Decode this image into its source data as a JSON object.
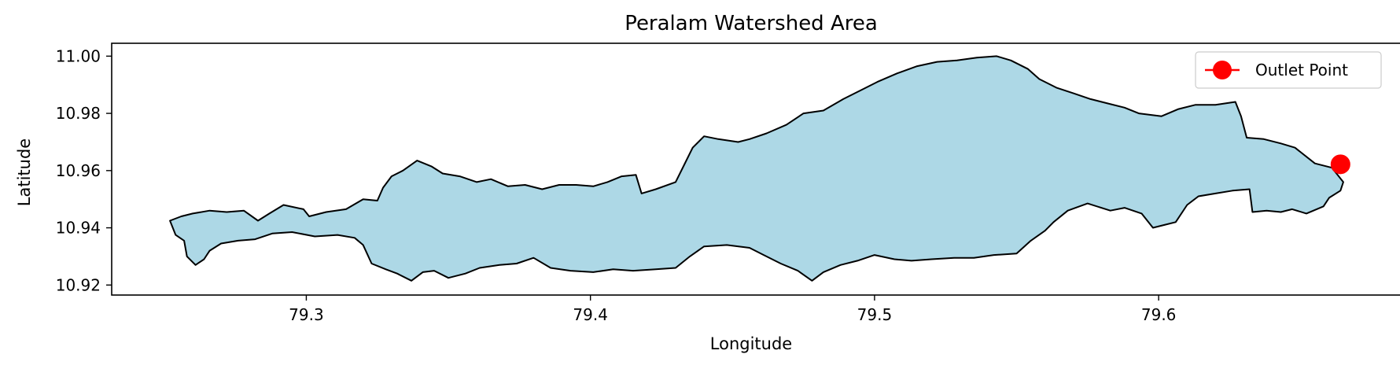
{
  "chart_data": {
    "type": "map",
    "title": "Peralam Watershed Area",
    "xlabel": "Longitude",
    "ylabel": "Latitude",
    "xlim": [
      79.2315,
      79.6855
    ],
    "ylim": [
      10.9165,
      11.0045
    ],
    "xticks": [
      79.3,
      79.4,
      79.5,
      79.6
    ],
    "xtick_labels": [
      "79.3",
      "79.4",
      "79.5",
      "79.6"
    ],
    "yticks": [
      10.92,
      10.94,
      10.96,
      10.98,
      11.0
    ],
    "ytick_labels": [
      "10.92",
      "10.94",
      "10.96",
      "10.98",
      "11.00"
    ],
    "grid": false,
    "legend": {
      "placement": "top-right",
      "entries": [
        {
          "label": "Outlet Point",
          "color": "#ff0000",
          "marker": "circle"
        }
      ]
    },
    "watershed": {
      "fill": "#add8e6",
      "edge": "#000000",
      "boundary": [
        [
          79.252,
          10.9425
        ],
        [
          79.256,
          10.944
        ],
        [
          79.26,
          10.945
        ],
        [
          79.266,
          10.946
        ],
        [
          79.272,
          10.9455
        ],
        [
          79.278,
          10.946
        ],
        [
          79.283,
          10.9425
        ],
        [
          79.287,
          10.945
        ],
        [
          79.292,
          10.948
        ],
        [
          79.299,
          10.9465
        ],
        [
          79.301,
          10.944
        ],
        [
          79.307,
          10.9455
        ],
        [
          79.314,
          10.9465
        ],
        [
          79.32,
          10.95
        ],
        [
          79.325,
          10.9495
        ],
        [
          79.327,
          10.954
        ],
        [
          79.33,
          10.958
        ],
        [
          79.334,
          10.96
        ],
        [
          79.339,
          10.9635
        ],
        [
          79.344,
          10.9615
        ],
        [
          79.348,
          10.959
        ],
        [
          79.354,
          10.958
        ],
        [
          79.36,
          10.956
        ],
        [
          79.365,
          10.957
        ],
        [
          79.371,
          10.9545
        ],
        [
          79.377,
          10.955
        ],
        [
          79.383,
          10.9535
        ],
        [
          79.389,
          10.955
        ],
        [
          79.395,
          10.955
        ],
        [
          79.401,
          10.9545
        ],
        [
          79.406,
          10.956
        ],
        [
          79.411,
          10.958
        ],
        [
          79.416,
          10.9585
        ],
        [
          79.418,
          10.952
        ],
        [
          79.423,
          10.9535
        ],
        [
          79.43,
          10.956
        ],
        [
          79.433,
          10.962
        ],
        [
          79.436,
          10.968
        ],
        [
          79.44,
          10.972
        ],
        [
          79.445,
          10.971
        ],
        [
          79.452,
          10.97
        ],
        [
          79.456,
          10.971
        ],
        [
          79.462,
          10.973
        ],
        [
          79.469,
          10.976
        ],
        [
          79.475,
          10.98
        ],
        [
          79.482,
          10.981
        ],
        [
          79.489,
          10.985
        ],
        [
          79.495,
          10.988
        ],
        [
          79.501,
          10.991
        ],
        [
          79.508,
          10.994
        ],
        [
          79.515,
          10.9965
        ],
        [
          79.522,
          10.998
        ],
        [
          79.529,
          10.9985
        ],
        [
          79.536,
          10.9995
        ],
        [
          79.543,
          11.0
        ],
        [
          79.548,
          10.9985
        ],
        [
          79.554,
          10.9955
        ],
        [
          79.558,
          10.992
        ],
        [
          79.564,
          10.989
        ],
        [
          79.57,
          10.987
        ],
        [
          79.576,
          10.985
        ],
        [
          79.582,
          10.9835
        ],
        [
          79.588,
          10.982
        ],
        [
          79.593,
          10.98
        ],
        [
          79.601,
          10.979
        ],
        [
          79.607,
          10.9815
        ],
        [
          79.613,
          10.983
        ],
        [
          79.62,
          10.983
        ],
        [
          79.627,
          10.984
        ],
        [
          79.629,
          10.979
        ],
        [
          79.631,
          10.9715
        ],
        [
          79.637,
          10.971
        ],
        [
          79.643,
          10.9695
        ],
        [
          79.648,
          10.968
        ],
        [
          79.655,
          10.9625
        ],
        [
          79.661,
          10.961
        ],
        [
          79.665,
          10.956
        ],
        [
          79.664,
          10.953
        ],
        [
          79.66,
          10.9505
        ],
        [
          79.658,
          10.9475
        ],
        [
          79.652,
          10.945
        ],
        [
          79.647,
          10.9465
        ],
        [
          79.643,
          10.9455
        ],
        [
          79.638,
          10.946
        ],
        [
          79.633,
          10.9455
        ],
        [
          79.632,
          10.9535
        ],
        [
          79.626,
          10.953
        ],
        [
          79.62,
          10.952
        ],
        [
          79.614,
          10.951
        ],
        [
          79.61,
          10.948
        ],
        [
          79.606,
          10.942
        ],
        [
          79.602,
          10.941
        ],
        [
          79.598,
          10.94
        ],
        [
          79.594,
          10.945
        ],
        [
          79.588,
          10.947
        ],
        [
          79.583,
          10.946
        ],
        [
          79.575,
          10.9485
        ],
        [
          79.568,
          10.946
        ],
        [
          79.563,
          10.942
        ],
        [
          79.56,
          10.939
        ],
        [
          79.555,
          10.9355
        ],
        [
          79.55,
          10.931
        ],
        [
          79.542,
          10.9305
        ],
        [
          79.535,
          10.9295
        ],
        [
          79.528,
          10.9295
        ],
        [
          79.52,
          10.929
        ],
        [
          79.513,
          10.9285
        ],
        [
          79.507,
          10.929
        ],
        [
          79.5,
          10.9305
        ],
        [
          79.494,
          10.9285
        ],
        [
          79.488,
          10.927
        ],
        [
          79.482,
          10.9245
        ],
        [
          79.478,
          10.9215
        ],
        [
          79.473,
          10.925
        ],
        [
          79.467,
          10.9275
        ],
        [
          79.461,
          10.9305
        ],
        [
          79.456,
          10.933
        ],
        [
          79.448,
          10.934
        ],
        [
          79.44,
          10.9335
        ],
        [
          79.435,
          10.93
        ],
        [
          79.43,
          10.926
        ],
        [
          79.423,
          10.9255
        ],
        [
          79.415,
          10.925
        ],
        [
          79.408,
          10.9255
        ],
        [
          79.401,
          10.9245
        ],
        [
          79.393,
          10.925
        ],
        [
          79.386,
          10.926
        ],
        [
          79.38,
          10.9295
        ],
        [
          79.374,
          10.9275
        ],
        [
          79.368,
          10.927
        ],
        [
          79.361,
          10.926
        ],
        [
          79.356,
          10.924
        ],
        [
          79.35,
          10.9225
        ],
        [
          79.345,
          10.925
        ],
        [
          79.341,
          10.9245
        ],
        [
          79.337,
          10.9215
        ],
        [
          79.332,
          10.924
        ],
        [
          79.328,
          10.9255
        ],
        [
          79.323,
          10.9275
        ],
        [
          79.32,
          10.934
        ],
        [
          79.317,
          10.9365
        ],
        [
          79.311,
          10.9375
        ],
        [
          79.303,
          10.937
        ],
        [
          79.295,
          10.9385
        ],
        [
          79.288,
          10.938
        ],
        [
          79.282,
          10.936
        ],
        [
          79.276,
          10.9355
        ],
        [
          79.27,
          10.9345
        ],
        [
          79.266,
          10.932
        ],
        [
          79.264,
          10.929
        ],
        [
          79.261,
          10.927
        ],
        [
          79.258,
          10.93
        ],
        [
          79.257,
          10.9355
        ],
        [
          79.254,
          10.9375
        ],
        [
          79.252,
          10.9425
        ]
      ]
    },
    "outlet_point": {
      "label": "Outlet Point",
      "lon": 79.664,
      "lat": 10.9622,
      "color": "#ff0000"
    }
  }
}
